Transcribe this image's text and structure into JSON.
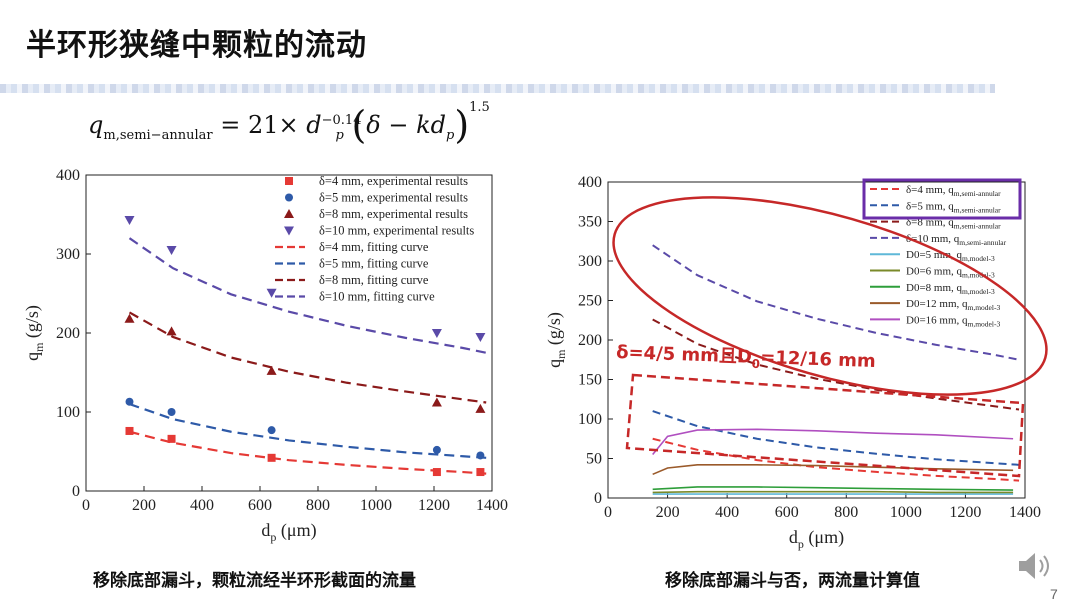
{
  "slide": {
    "title": "半环形狭缝中颗粒的流动",
    "page_number": "7"
  },
  "formula": {
    "lhs_main": "q",
    "lhs_sub": "m,semi−annular",
    "coef": "= 21×",
    "d_main": "d",
    "d_sup": "−0.14",
    "d_sub": "p",
    "open_paren": "(",
    "delta_term": "δ − kd",
    "delta_sub": "p",
    "close_paren": ")",
    "exp": "1.5"
  },
  "captions": {
    "left": "移除底部漏斗，颗粒流经半环形截面的流量",
    "right": "移除底部漏斗与否，两流量计算值"
  },
  "annotations": {
    "right_label": "δ=4/5 mm且D",
    "right_label_sub": "0",
    "right_label_tail": "=12/16 mm",
    "colors": {
      "ellipse": "#c62828",
      "rect": "#c62828",
      "legend_box": "#6a2da8",
      "label": "#c62828"
    }
  },
  "chart_data": [
    {
      "type": "scatter",
      "xlabel": "d",
      "xlabel_sub": "p",
      "xlabel_unit": " (μm)",
      "ylabel": "q",
      "ylabel_sub": "m",
      "ylabel_unit": " (g/s)",
      "xlim": [
        0,
        1400
      ],
      "ylim": [
        0,
        400
      ],
      "xticks": [
        0,
        200,
        400,
        600,
        800,
        1000,
        1200,
        1400
      ],
      "yticks": [
        0,
        100,
        200,
        300,
        400
      ],
      "legend_position": "top-right",
      "series": [
        {
          "name": "δ=4 mm, experimental results",
          "kind": "points",
          "marker": "square",
          "color": "#e53935",
          "x": [
            150,
            295,
            640,
            1210,
            1360
          ],
          "y": [
            76,
            66,
            42,
            24,
            24
          ]
        },
        {
          "name": "δ=5 mm, experimental results",
          "kind": "points",
          "marker": "circle",
          "color": "#2e5aa8",
          "x": [
            150,
            295,
            640,
            1210,
            1360
          ],
          "y": [
            113,
            100,
            77,
            52,
            45
          ]
        },
        {
          "name": "δ=8 mm, experimental results",
          "kind": "points",
          "marker": "triangle-up",
          "color": "#8b1a1a",
          "x": [
            150,
            295,
            640,
            1210,
            1360
          ],
          "y": [
            218,
            202,
            152,
            112,
            104
          ]
        },
        {
          "name": "δ=10 mm, experimental results",
          "kind": "points",
          "marker": "triangle-down",
          "color": "#5a4aa8",
          "x": [
            150,
            295,
            640,
            1210,
            1360
          ],
          "y": [
            343,
            305,
            251,
            200,
            195
          ]
        },
        {
          "name": "δ=4 mm, fitting curve",
          "kind": "line",
          "dash": "10,6",
          "color": "#e53935",
          "x": [
            150,
            300,
            500,
            700,
            900,
            1100,
            1300,
            1380
          ],
          "y": [
            75,
            61,
            48,
            39,
            33,
            28,
            24,
            22
          ]
        },
        {
          "name": "δ=5 mm, fitting curve",
          "kind": "line",
          "dash": "10,6",
          "color": "#2e5aa8",
          "x": [
            150,
            300,
            500,
            700,
            900,
            1100,
            1300,
            1380
          ],
          "y": [
            110,
            91,
            75,
            64,
            56,
            49,
            44,
            42
          ]
        },
        {
          "name": "δ=8 mm, fitting curve",
          "kind": "line",
          "dash": "10,6",
          "color": "#8b1a1a",
          "x": [
            150,
            300,
            500,
            700,
            900,
            1100,
            1300,
            1380
          ],
          "y": [
            226,
            195,
            169,
            151,
            137,
            126,
            116,
            112
          ]
        },
        {
          "name": "δ=10 mm, fitting curve",
          "kind": "line",
          "dash": "10,6",
          "color": "#5a4aa8",
          "x": [
            150,
            300,
            500,
            700,
            900,
            1100,
            1300,
            1380
          ],
          "y": [
            320,
            282,
            249,
            227,
            209,
            194,
            181,
            175
          ]
        }
      ]
    },
    {
      "type": "line",
      "xlabel": "d",
      "xlabel_sub": "p",
      "xlabel_unit": " (μm)",
      "ylabel": "q",
      "ylabel_sub": "m",
      "ylabel_unit": " (g/s)",
      "xlim": [
        0,
        1400
      ],
      "ylim": [
        0,
        400
      ],
      "xticks": [
        0,
        200,
        400,
        600,
        800,
        1000,
        1200,
        1400
      ],
      "yticks": [
        0,
        50,
        100,
        150,
        200,
        250,
        300,
        350,
        400
      ],
      "legend_position": "top-right",
      "series": [
        {
          "name": "δ=4 mm, q",
          "name_sub": "m,semi-annular",
          "dash": "8,5",
          "color": "#e53935",
          "x": [
            150,
            300,
            500,
            700,
            900,
            1100,
            1300,
            1380
          ],
          "y": [
            75,
            61,
            48,
            39,
            33,
            28,
            24,
            22
          ]
        },
        {
          "name": "δ=5 mm, q",
          "name_sub": "m,semi-annular",
          "dash": "8,5",
          "color": "#2e5aa8",
          "x": [
            150,
            300,
            500,
            700,
            900,
            1100,
            1300,
            1380
          ],
          "y": [
            110,
            91,
            75,
            64,
            56,
            49,
            44,
            42
          ]
        },
        {
          "name": "δ=8 mm, q",
          "name_sub": "m,semi-annular",
          "dash": "8,5",
          "color": "#8b1a1a",
          "x": [
            150,
            300,
            500,
            700,
            900,
            1100,
            1300,
            1380
          ],
          "y": [
            226,
            195,
            169,
            151,
            137,
            126,
            116,
            112
          ]
        },
        {
          "name": "δ=10 mm, q",
          "name_sub": "m,semi-annular",
          "dash": "8,5",
          "color": "#5a4aa8",
          "x": [
            150,
            300,
            500,
            700,
            900,
            1100,
            1300,
            1380
          ],
          "y": [
            320,
            282,
            249,
            227,
            209,
            194,
            181,
            175
          ]
        },
        {
          "name": "D0=5 mm, q",
          "name_sub": "m,model-3",
          "dash": "",
          "color": "#5fb8d8",
          "x": [
            150,
            300,
            500,
            700,
            900,
            1100,
            1360
          ],
          "y": [
            5,
            5,
            5,
            5,
            5,
            5,
            5
          ]
        },
        {
          "name": "D0=6 mm, q",
          "name_sub": "m,model-3",
          "dash": "",
          "color": "#7a8a2a",
          "x": [
            150,
            300,
            500,
            700,
            900,
            1100,
            1360
          ],
          "y": [
            7,
            8,
            8,
            8,
            8,
            7,
            7
          ]
        },
        {
          "name": "D0=8 mm, q",
          "name_sub": "m,model-3",
          "dash": "",
          "color": "#2e9e3a",
          "x": [
            150,
            300,
            500,
            700,
            900,
            1100,
            1360
          ],
          "y": [
            11,
            14,
            14,
            13,
            12,
            11,
            10
          ]
        },
        {
          "name": "D0=12 mm, q",
          "name_sub": "m,model-3",
          "dash": "",
          "color": "#9a5a2a",
          "x": [
            150,
            200,
            300,
            500,
            700,
            900,
            1100,
            1360
          ],
          "y": [
            30,
            38,
            42,
            42,
            41,
            39,
            37,
            35
          ]
        },
        {
          "name": "D0=16 mm, q",
          "name_sub": "m,model-3",
          "dash": "",
          "color": "#b04fc0",
          "x": [
            150,
            200,
            300,
            500,
            700,
            900,
            1100,
            1360
          ],
          "y": [
            55,
            78,
            86,
            87,
            85,
            82,
            80,
            75
          ]
        }
      ]
    }
  ]
}
